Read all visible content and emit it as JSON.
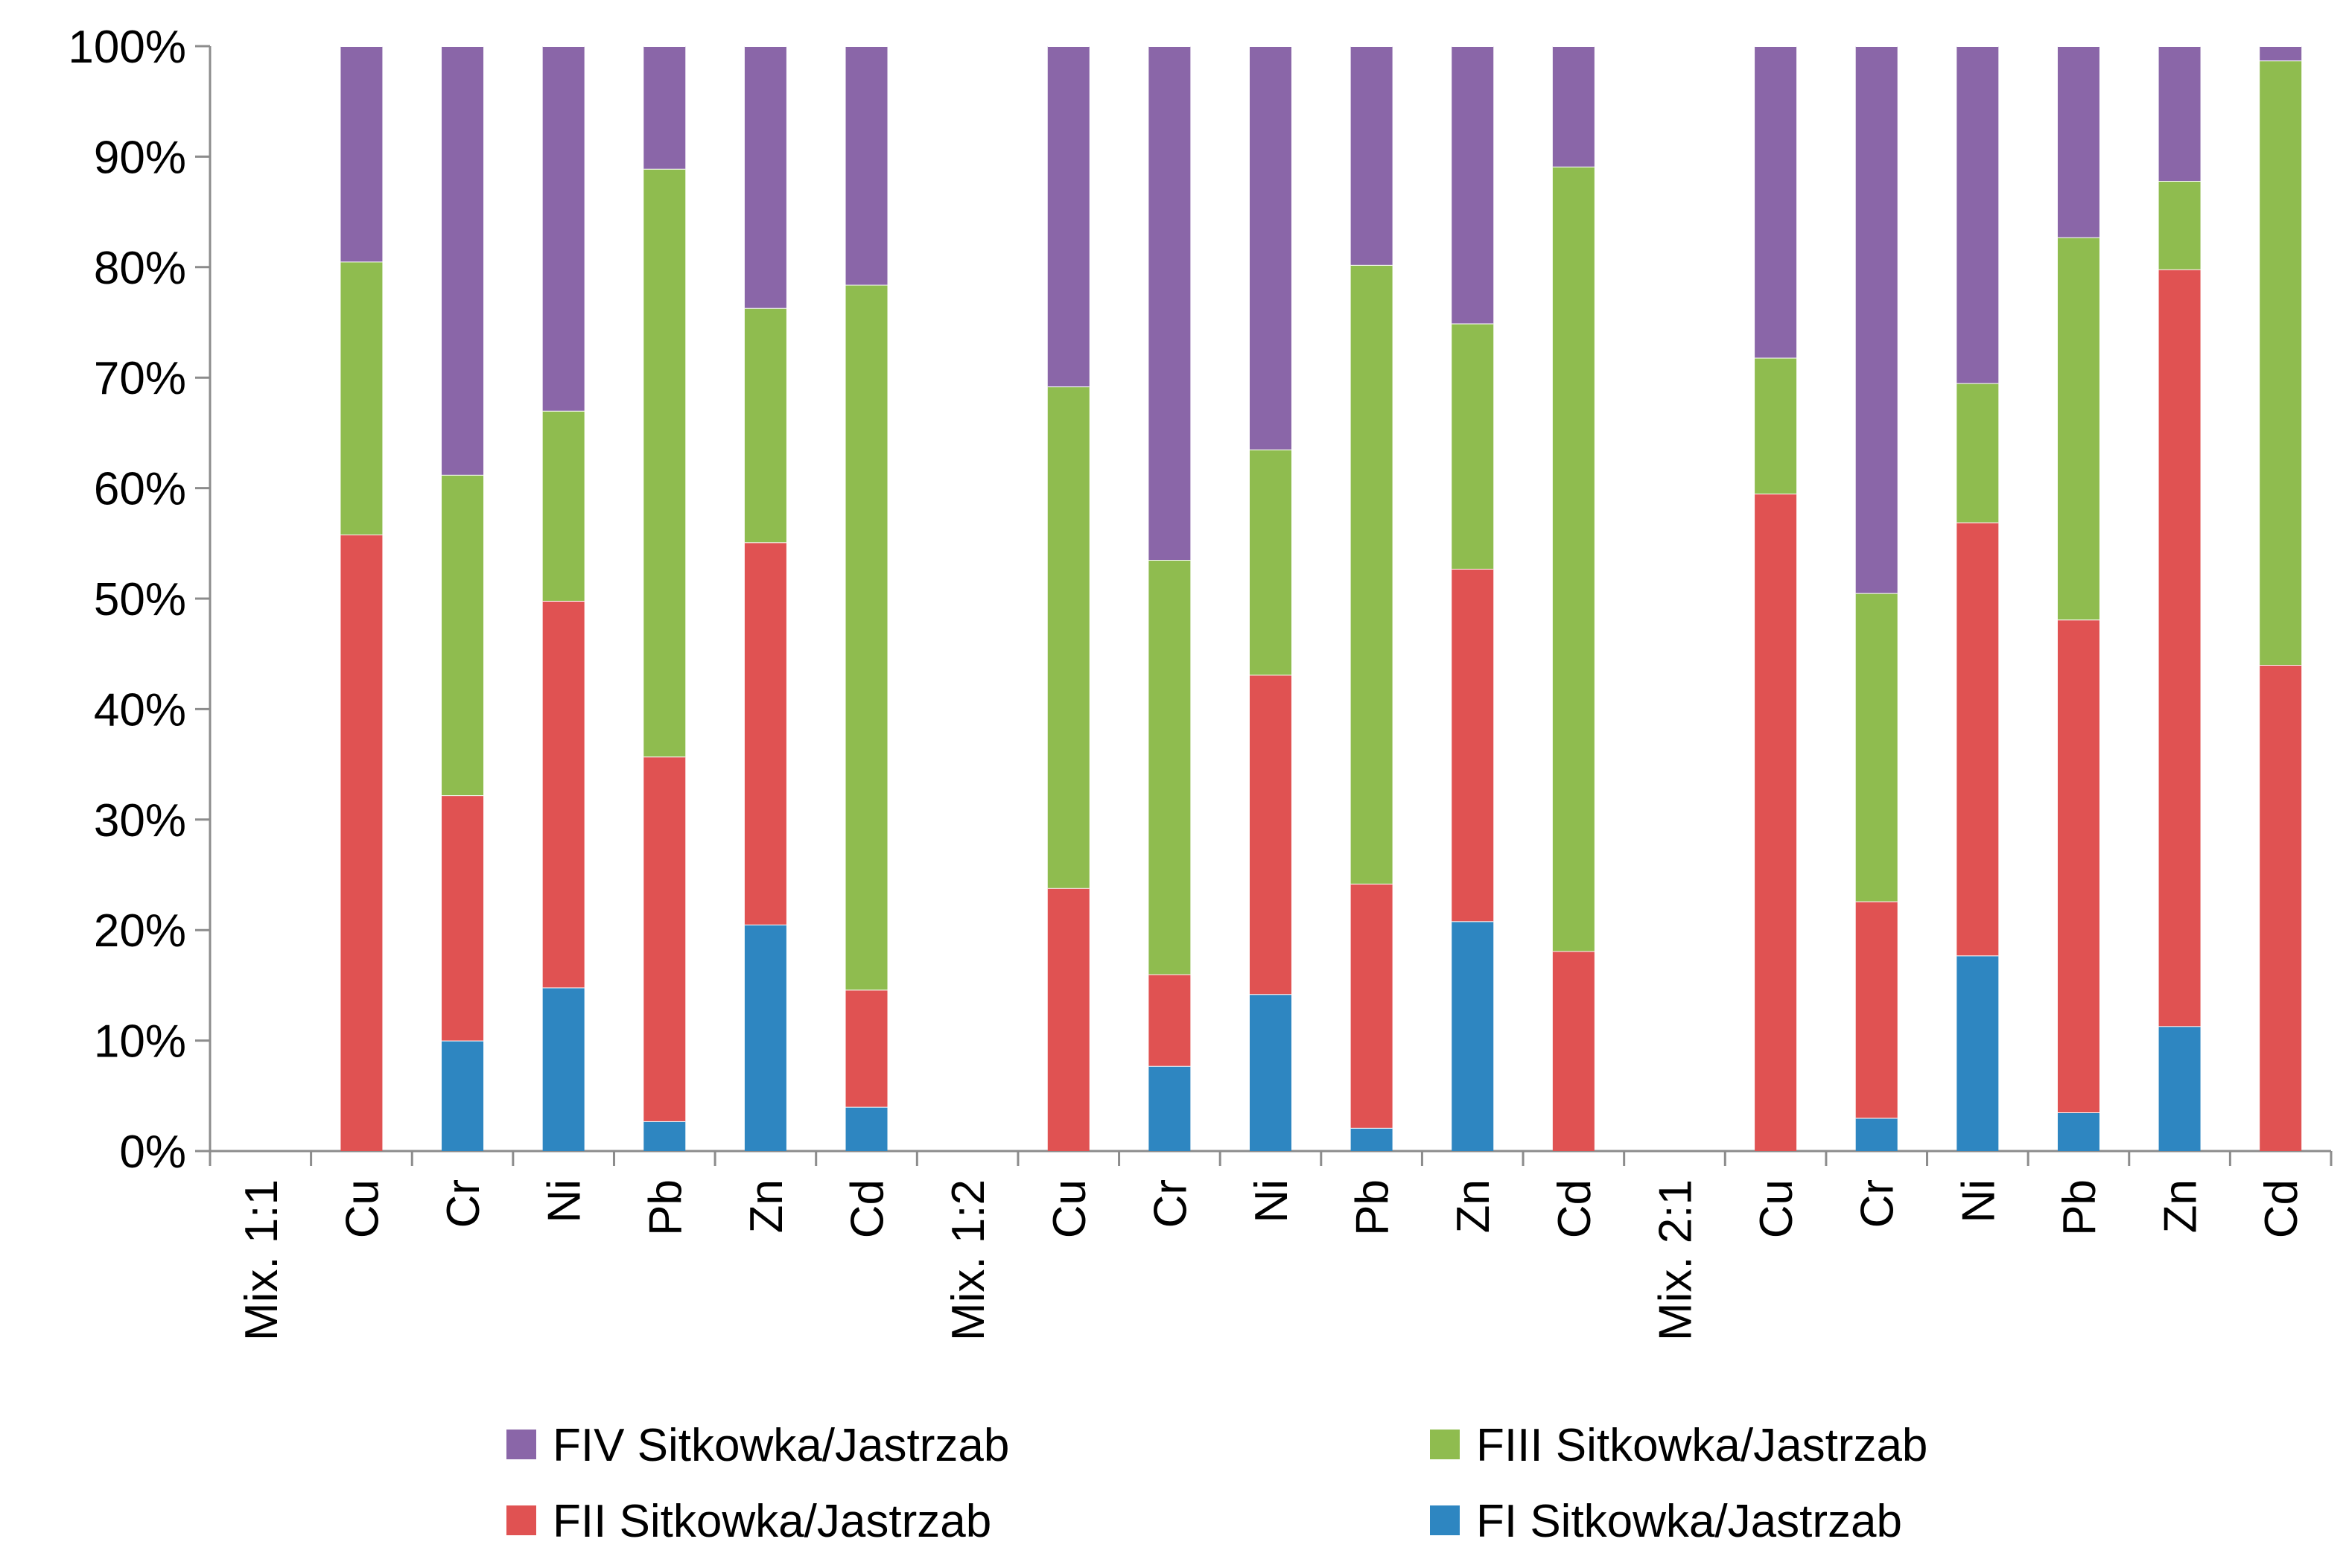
{
  "chart_data": {
    "type": "bar",
    "stacked": true,
    "percent": true,
    "title": "",
    "xlabel": "",
    "ylabel": "",
    "ylim": [
      0,
      100
    ],
    "yticks": [
      "0%",
      "10%",
      "20%",
      "30%",
      "40%",
      "50%",
      "60%",
      "70%",
      "80%",
      "90%",
      "100%"
    ],
    "categories": [
      "Mix. 1:1",
      "Cu",
      "Cr",
      "Ni",
      "Pb",
      "Zn",
      "Cd",
      "Mix. 1:2",
      "Cu",
      "Cr",
      "Ni",
      "Pb",
      "Zn",
      "Cd",
      "Mix. 2:1",
      "Cu",
      "Cr",
      "Ni",
      "Pb",
      "Zn",
      "Cd"
    ],
    "series": [
      {
        "name": "FI Sitkowka/Jastrzab",
        "color": "#2e86c1",
        "values": [
          0,
          0,
          10,
          14.8,
          2.7,
          20.5,
          4.0,
          0,
          0,
          7.7,
          14.2,
          2.1,
          20.8,
          0,
          0,
          0,
          3.0,
          17.7,
          3.5,
          11.3,
          0
        ]
      },
      {
        "name": "FII Sitkowka/Jastrzab",
        "color": "#e05252",
        "values": [
          0,
          55.8,
          22.2,
          35.0,
          33.0,
          34.6,
          10.6,
          0,
          23.8,
          8.3,
          28.9,
          22.1,
          31.9,
          18.1,
          0,
          59.5,
          19.6,
          39.2,
          44.6,
          68.5,
          44.0
        ]
      },
      {
        "name": "FIII Sitkowka/Jastrzab",
        "color": "#8fbc4f",
        "values": [
          0,
          24.7,
          29.0,
          17.2,
          53.2,
          21.2,
          63.8,
          0,
          45.4,
          37.5,
          20.4,
          56.0,
          22.2,
          71.0,
          0,
          12.3,
          27.9,
          12.6,
          34.6,
          8.0,
          54.7
        ]
      },
      {
        "name": "FIV Sitkowka/Jastrzab",
        "color": "#8a66a8",
        "values": [
          0,
          19.5,
          38.8,
          33.0,
          11.1,
          23.7,
          21.6,
          0,
          30.8,
          46.5,
          36.5,
          19.8,
          25.1,
          10.9,
          0,
          28.2,
          49.5,
          30.5,
          17.3,
          12.2,
          1.3
        ]
      }
    ],
    "legend": {
      "position": "bottom",
      "entries": [
        {
          "label": "FIV Sitkowka/Jastrzab",
          "color": "#8a66a8"
        },
        {
          "label": "FIII Sitkowka/Jastrzab",
          "color": "#8fbc4f"
        },
        {
          "label": "FII Sitkowka/Jastrzab",
          "color": "#e05252"
        },
        {
          "label": "FI Sitkowka/Jastrzab",
          "color": "#2e86c1"
        }
      ]
    },
    "grid": false
  }
}
